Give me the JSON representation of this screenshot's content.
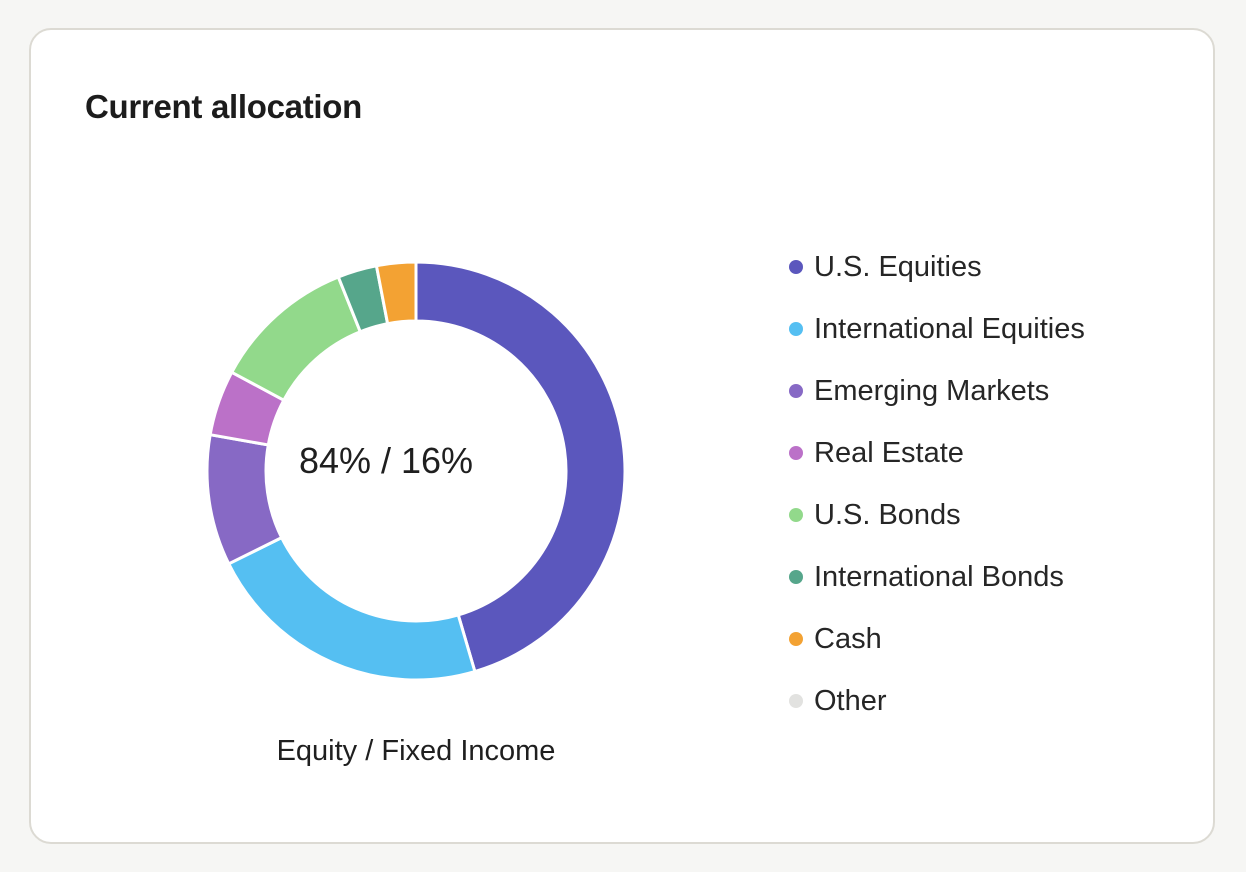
{
  "card": {
    "title": "Current allocation"
  },
  "chart_data": {
    "type": "pie",
    "variant": "donut",
    "center_label": "84% / 16%",
    "caption": "Equity / Fixed Income",
    "legend_position": "right",
    "slices": [
      {
        "label": "U.S. Equities",
        "value": 45,
        "color": "#5b57bd"
      },
      {
        "label": "International Equities",
        "value": 22,
        "color": "#55bff2"
      },
      {
        "label": "Emerging Markets",
        "value": 10,
        "color": "#8769c5"
      },
      {
        "label": "Real Estate",
        "value": 5,
        "color": "#bb71c8"
      },
      {
        "label": "U.S. Bonds",
        "value": 11,
        "color": "#92d98b"
      },
      {
        "label": "International Bonds",
        "value": 3,
        "color": "#56a68b"
      },
      {
        "label": "Cash",
        "value": 3,
        "color": "#f3a233"
      },
      {
        "label": "Other",
        "value": 0,
        "color": "#e2e2e0"
      }
    ]
  }
}
